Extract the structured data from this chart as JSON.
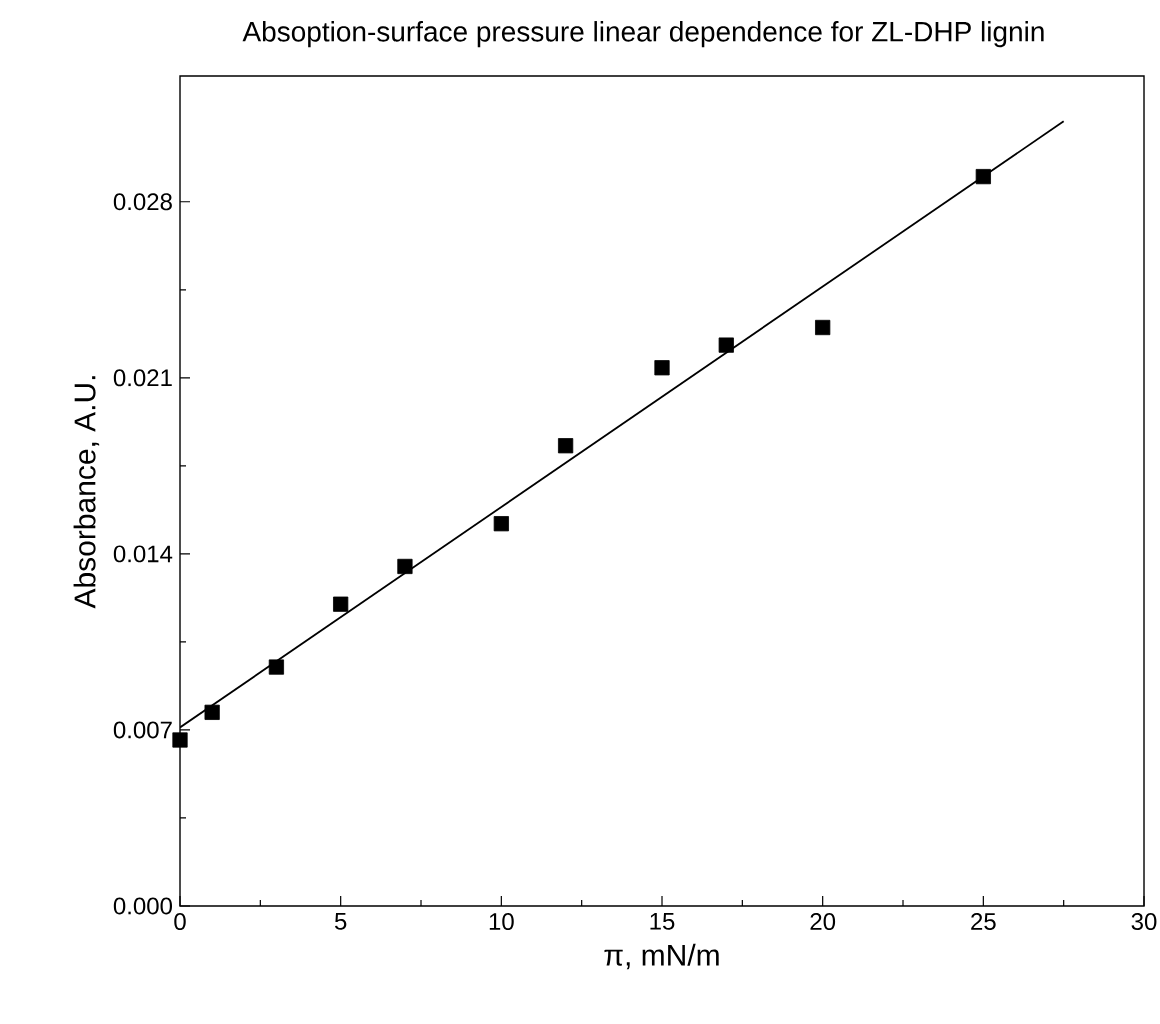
{
  "chart_data": {
    "type": "scatter",
    "title": "Absoption-surface pressure linear dependence for ZL-DHP lignin",
    "xlabel": "π, mN/m",
    "ylabel": "Absorbance, A.U.",
    "xlim": [
      0,
      30
    ],
    "ylim": [
      0,
      0.033
    ],
    "xticks": [
      0,
      5,
      10,
      15,
      20,
      25,
      30
    ],
    "yticks": [
      {
        "value": 0,
        "label": "0.000"
      },
      {
        "value": 0.007,
        "label": "0.007"
      },
      {
        "value": 0.014,
        "label": "0.014"
      },
      {
        "value": 0.021,
        "label": "0.021"
      },
      {
        "value": 0.028,
        "label": "0.028"
      }
    ],
    "series": [
      {
        "marker": "square",
        "color": "#000000",
        "x": [
          0,
          1,
          3,
          5,
          7,
          10,
          12,
          15,
          17,
          20,
          25
        ],
        "values": [
          0.0066,
          0.0077,
          0.0095,
          0.012,
          0.0135,
          0.0152,
          0.0183,
          0.0214,
          0.0223,
          0.023,
          0.029
        ]
      },
      {
        "type": "line",
        "marker": "none",
        "color": "#000000",
        "line_style": "solid",
        "x": [
          0,
          27.5
        ],
        "values": [
          0.0071,
          0.0312
        ]
      }
    ]
  }
}
